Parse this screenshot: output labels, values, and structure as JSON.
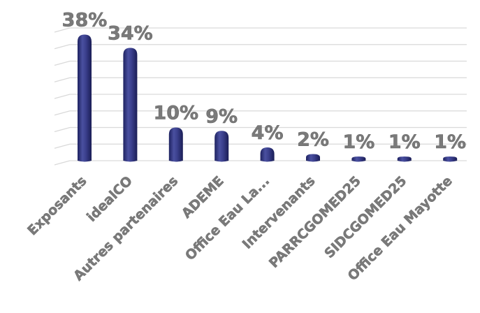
{
  "chart_data": {
    "type": "bar",
    "title": "",
    "xlabel": "",
    "ylabel": "",
    "categories": [
      "Exposants",
      "idealCO",
      "Autres partenaires",
      "ADEME",
      "Office Eau La...",
      "Intervenants",
      "PARRCGOMED25",
      "SIDCGOMED25",
      "Office Eau Mayotte"
    ],
    "values": [
      38,
      34,
      10,
      9,
      4,
      2,
      1,
      1,
      1
    ],
    "data_labels": [
      "38%",
      "34%",
      "10%",
      "9%",
      "4%",
      "2%",
      "1%",
      "1%",
      "1%"
    ],
    "ylim": [
      0,
      40
    ],
    "grid": true,
    "bar_color": "#2b2f72",
    "label_color": "#7a7a7a"
  }
}
